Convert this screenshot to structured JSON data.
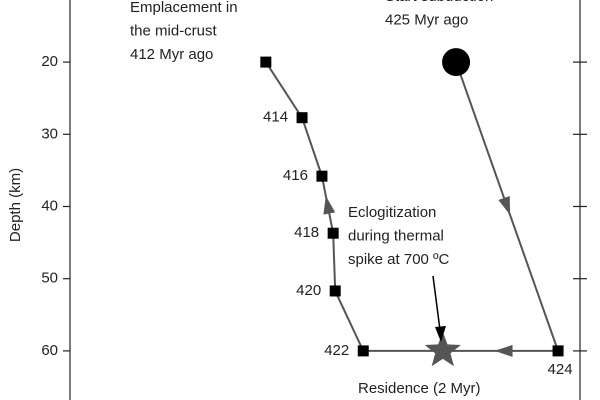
{
  "chart_data": {
    "type": "path",
    "y_label": "Depth (km)",
    "ylim": [
      11.4,
      66.8
    ],
    "invert_y": true,
    "yticks": [
      20,
      30,
      40,
      50,
      60
    ],
    "xlim": [
      0,
      100
    ],
    "line_color": "#555555",
    "marker_color": "#000000",
    "star_color": "#555555",
    "x": [
      75.7,
      95.7,
      57.5,
      52.0,
      51.6,
      49.4,
      45.5,
      38.4
    ],
    "y": [
      20,
      60,
      60,
      51.7,
      43.7,
      35.8,
      27.7,
      20
    ],
    "ages": [
      425,
      424,
      422,
      420,
      418,
      416,
      414,
      412
    ],
    "star": {
      "x": 73.1,
      "y": 60
    },
    "annotations": [
      {
        "lines": [
          "Emplacement in",
          "the mid-crust",
          "412 Myr ago"
        ]
      },
      {
        "lines": [
          "Start subduction",
          "425 Myr ago"
        ]
      },
      {
        "lines": [
          "Eclogitization",
          "during thermal",
          "spike at 700 ºC"
        ]
      },
      {
        "lines": [
          "Residence (2 Myr)"
        ]
      }
    ]
  }
}
